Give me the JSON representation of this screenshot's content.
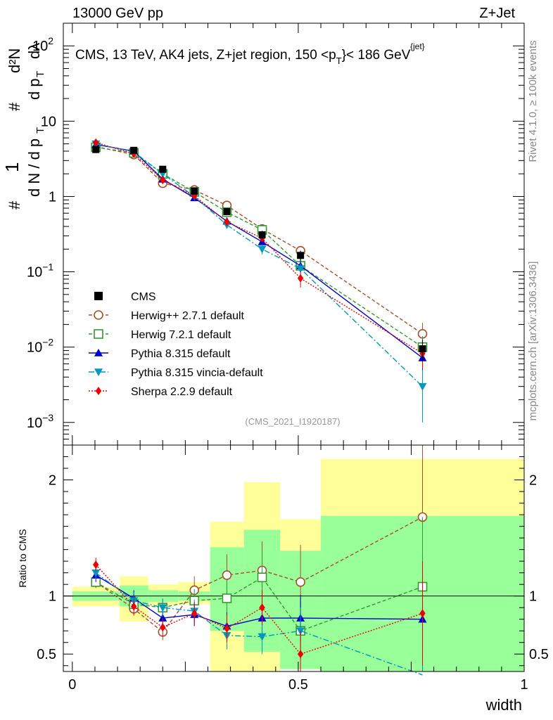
{
  "header": {
    "left": "13000 GeV pp",
    "right": "Z+Jet"
  },
  "side_labels": {
    "rivet": "Rivet 4.1.0, ≥ 100k events",
    "mcplots": "mcplots.cern.ch [arXiv:1306.3436]"
  },
  "chart_data": {
    "type": "line",
    "title": "CMS, 13 TeV, AK4 jets, Z+jet region, 150 <p_T^{jet}< 186 GeV",
    "title_parts": {
      "main": "CMS, 13 TeV, AK4 jets, Z+jet region, 150 <p",
      "sup": "{jet}",
      "sub": "T",
      "tail": "}< 186 GeV"
    },
    "ylabel": "(1/dN/dp_T) d²N/(dp_T dλ)",
    "ylabel_parts": {
      "hash": "#",
      "one": "1",
      "dN": "d N / d p",
      "T": "T",
      "d2N": "d²N",
      "dp": "d p",
      "dl": "dλ"
    },
    "xlabel": "width",
    "ratio_ylabel": "Ratio to CMS",
    "analysis_id": "(CMS_2021_I1920187)",
    "main_yscale": "log",
    "main_ylim": [
      0.0005,
      200
    ],
    "main_yticks": [
      {
        "v": 0.001,
        "base": "10",
        "exp": "−3"
      },
      {
        "v": 0.01,
        "base": "10",
        "exp": "−2"
      },
      {
        "v": 0.1,
        "base": "10",
        "exp": "−1"
      },
      {
        "v": 1,
        "base": "1",
        "exp": ""
      },
      {
        "v": 10,
        "base": "10",
        "exp": ""
      },
      {
        "v": 100,
        "base": "10",
        "exp": "2"
      }
    ],
    "ratio_ylim": [
      0.35,
      2.3
    ],
    "ratio_yticks": [
      {
        "v": 0.5,
        "label": "0.5"
      },
      {
        "v": 1,
        "label": "1"
      },
      {
        "v": 2,
        "label": "2"
      }
    ],
    "xlim": [
      -0.02,
      1.0
    ],
    "xticks": [
      {
        "v": 0,
        "label": "0"
      },
      {
        "v": 0.5,
        "label": "0.5"
      },
      {
        "v": 1,
        "label": "1"
      }
    ],
    "bins": [
      [
        0.0,
        0.105
      ],
      [
        0.105,
        0.168
      ],
      [
        0.168,
        0.234
      ],
      [
        0.234,
        0.305
      ],
      [
        0.305,
        0.38
      ],
      [
        0.38,
        0.46
      ],
      [
        0.46,
        0.55
      ],
      [
        0.55,
        1.0
      ]
    ],
    "x": [
      0.052,
      0.136,
      0.2,
      0.27,
      0.342,
      0.42,
      0.505,
      0.775
    ],
    "data": {
      "name": "CMS",
      "values": [
        4.2,
        4.1,
        2.3,
        1.18,
        0.63,
        0.31,
        0.165,
        0.0095
      ],
      "errors": [
        0.35,
        0.3,
        0.2,
        0.1,
        0.06,
        0.04,
        0.025,
        0.003
      ]
    },
    "ratio_bands": {
      "yellow": [
        [
          0.91,
          1.08
        ],
        [
          0.78,
          1.17
        ],
        [
          0.92,
          1.1
        ],
        [
          0.93,
          1.12
        ],
        [
          0.33,
          1.64
        ],
        [
          0.33,
          1.98
        ],
        [
          0.37,
          1.66
        ],
        [
          0.33,
          2.18
        ]
      ],
      "green": [
        [
          0.96,
          1.04
        ],
        [
          0.91,
          1.09
        ],
        [
          0.95,
          1.05
        ],
        [
          0.96,
          1.04
        ],
        [
          0.7,
          1.42
        ],
        [
          0.52,
          1.57
        ],
        [
          0.37,
          1.39
        ],
        [
          0.33,
          1.69
        ]
      ]
    },
    "series": [
      {
        "name": "Herwig++ 2.7.1 default",
        "color": "#a0522d",
        "dash": "5,3",
        "marker": "circle-open",
        "values": [
          4.6,
          3.6,
          1.5,
          1.22,
          0.76,
          0.37,
          0.19,
          0.015
        ],
        "errors": [
          0.3,
          0.25,
          0.12,
          0.09,
          0.06,
          0.04,
          0.03,
          0.006
        ],
        "ratio": [
          1.12,
          0.89,
          0.69,
          1.05,
          1.18,
          1.22,
          1.12,
          1.68
        ],
        "ratio_err": [
          0.05,
          0.06,
          0.07,
          0.12,
          0.18,
          0.25,
          0.32,
          0.65
        ]
      },
      {
        "name": "Herwig 7.2.1 default",
        "color": "#339933",
        "dash": "5,3",
        "marker": "square-open",
        "values": [
          4.5,
          3.8,
          2.0,
          1.15,
          0.62,
          0.36,
          0.12,
          0.01
        ],
        "errors": [
          0.3,
          0.25,
          0.15,
          0.09,
          0.05,
          0.04,
          0.02,
          0.004
        ],
        "ratio": [
          1.12,
          0.93,
          0.9,
          0.96,
          0.98,
          1.16,
          0.7,
          1.08
        ],
        "ratio_err": [
          0.05,
          0.06,
          0.07,
          0.1,
          0.15,
          0.22,
          0.25,
          0.6
        ]
      },
      {
        "name": "Pythia 8.315 default",
        "color": "#0000cc",
        "dash": "none",
        "marker": "triangle-up",
        "values": [
          4.9,
          4.0,
          1.7,
          0.96,
          0.47,
          0.25,
          0.12,
          0.0072
        ],
        "errors": [
          0.3,
          0.25,
          0.12,
          0.07,
          0.04,
          0.03,
          0.02,
          0.003
        ],
        "ratio": [
          1.18,
          0.98,
          0.81,
          0.84,
          0.74,
          0.81,
          0.81,
          0.8
        ],
        "ratio_err": [
          0.06,
          0.07,
          0.08,
          0.1,
          0.12,
          0.15,
          0.2,
          0.42
        ]
      },
      {
        "name": "Pythia 8.315 vincia-default",
        "color": "#0099bb",
        "dash": "8,3,2,3",
        "marker": "triangle-down",
        "values": [
          5.0,
          3.9,
          2.0,
          1.0,
          0.42,
          0.2,
          0.11,
          0.003
        ],
        "errors": [
          0.3,
          0.25,
          0.15,
          0.08,
          0.04,
          0.03,
          0.02,
          0.002
        ],
        "ratio": [
          1.2,
          0.96,
          0.9,
          0.87,
          0.66,
          0.65,
          0.7,
          0.32
        ],
        "ratio_err": [
          0.06,
          0.07,
          0.08,
          0.1,
          0.12,
          0.15,
          0.2,
          0.2
        ]
      },
      {
        "name": "Sherpa 2.2.9 default",
        "color": "#ee0000",
        "dash": "2,2",
        "marker": "diamond",
        "values": [
          5.2,
          3.7,
          1.65,
          1.02,
          0.46,
          0.28,
          0.082,
          0.0082
        ],
        "errors": [
          0.3,
          0.25,
          0.12,
          0.08,
          0.04,
          0.03,
          0.02,
          0.003
        ],
        "ratio": [
          1.27,
          0.91,
          0.73,
          0.85,
          0.72,
          0.9,
          0.5,
          0.85
        ],
        "ratio_err": [
          0.06,
          0.07,
          0.08,
          0.1,
          0.12,
          0.15,
          0.2,
          0.45
        ]
      }
    ]
  }
}
